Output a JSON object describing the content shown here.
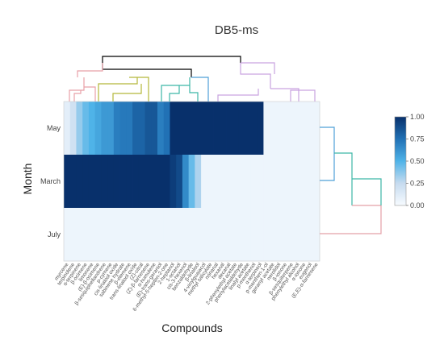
{
  "chart_data": {
    "type": "heatmap",
    "title": "DB5-ms",
    "xlabel": "Compounds",
    "ylabel": "Month",
    "rows": [
      "May",
      "March",
      "July"
    ],
    "columns": [
      "myrcene",
      "terpinolene",
      "α-terpinene",
      "β-ocimene",
      "limonene",
      "(E)-β-ocimene",
      "β-sesquiphellandrene",
      "p-cymene",
      "cis-linalool oxide",
      "sabinene hydrate",
      "β-elemene",
      "trans-linalool oxide",
      "(Z)-citral",
      "(Z)-β-farnesene",
      "α-humulene",
      "(E)-trans-geraniol",
      "6-methyl-5-hepten-2-one",
      "2-heptanol",
      "1-octanol",
      "cis-3-hexenol",
      "benzaldehyde",
      "β-linalool",
      "4-vinylguaiacol",
      "methyl salicylate",
      "nonanal",
      "hexanal",
      "decanal",
      "2-phenylethyl acetate",
      "phenylacetaldehyde",
      "linalyl acetate",
      "p-menthenol",
      "α-terpineol",
      "p-menthen-1-ol",
      "geranyl acetate",
      "nerolidol",
      "β-ionone",
      "β-sesquiterpene",
      "phenylethyl alcohol",
      "α-ionone",
      "eugenol",
      "(E,E)-α-farnesene"
    ],
    "values": [
      [
        0.1,
        0.2,
        0.35,
        0.45,
        0.5,
        0.55,
        0.6,
        0.6,
        0.7,
        0.72,
        0.72,
        0.8,
        0.8,
        0.85,
        0.85,
        0.7,
        0.75,
        1,
        1,
        1,
        1,
        1,
        1,
        1,
        1,
        1,
        1,
        1,
        1,
        1,
        1,
        1,
        0.05,
        0.05,
        0.05,
        0.05,
        0.05,
        0.05,
        0.05,
        0.05,
        0.05
      ],
      [
        1,
        1,
        1,
        1,
        1,
        1,
        1,
        1,
        1,
        1,
        1,
        1,
        1,
        1,
        1,
        1,
        1,
        0.95,
        0.9,
        0.65,
        0.45,
        0.3,
        0.05,
        0.05,
        0.05,
        0.05,
        0.05,
        0.05,
        0.05,
        0.05,
        0.05,
        0.05,
        0.05,
        0.05,
        0.05,
        0.05,
        0.05,
        0.05,
        0.05,
        0.05,
        0.05
      ],
      [
        0.05,
        0.05,
        0.05,
        0.05,
        0.05,
        0.05,
        0.05,
        0.05,
        0.05,
        0.05,
        0.05,
        0.05,
        0.05,
        0.05,
        0.05,
        0.05,
        0.05,
        0.05,
        0.05,
        0.05,
        0.05,
        0.05,
        0.05,
        0.05,
        0.05,
        0.05,
        0.05,
        0.05,
        0.05,
        0.05,
        0.05,
        0.05,
        0.05,
        0.05,
        0.05,
        0.05,
        0.05,
        0.05,
        0.05,
        0.05,
        0.05
      ]
    ],
    "colorscale": [
      "#f7fbff",
      "#c6dbef",
      "#4fb3e8",
      "#2171b5",
      "#08306b"
    ],
    "colorbar": {
      "min": 0,
      "max": 1,
      "ticks": [
        "1.00",
        "0.75",
        "0.50",
        "0.25",
        "0.00"
      ]
    },
    "dendrogram_colors": [
      "#000000",
      "#e8a0a8",
      "#b5b83a",
      "#3cb6a6",
      "#4fa0d8",
      "#c9a3e0",
      "#e4a0a8"
    ]
  }
}
